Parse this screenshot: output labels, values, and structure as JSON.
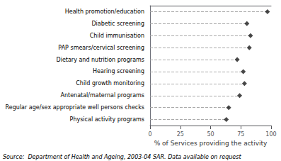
{
  "chart_data": {
    "type": "lollipop",
    "categories": [
      "Health promotion/education",
      "Diabetic screening",
      "Child immunisation",
      "PAP smears/cervical screening",
      "Dietary and nutrition programs",
      "Hearing screening",
      "Child growth monitoring",
      "Antenatal/maternal programs",
      "Regular age/sex appropriate well persons checks",
      "Physical activity programs"
    ],
    "values": [
      97,
      80,
      83,
      82,
      72,
      77,
      78,
      74,
      65,
      63
    ],
    "color": "#1a1a1a",
    "marker": "diamond",
    "line_style": "dashed",
    "xlabel": "% of Services providing the activity",
    "annotation": "Source:  Department of Health and Ageing, 2003-04 SAR. Data available on request",
    "xlim": [
      0,
      100
    ],
    "xticks": [
      0,
      25,
      50,
      75,
      100
    ],
    "grid": false
  }
}
